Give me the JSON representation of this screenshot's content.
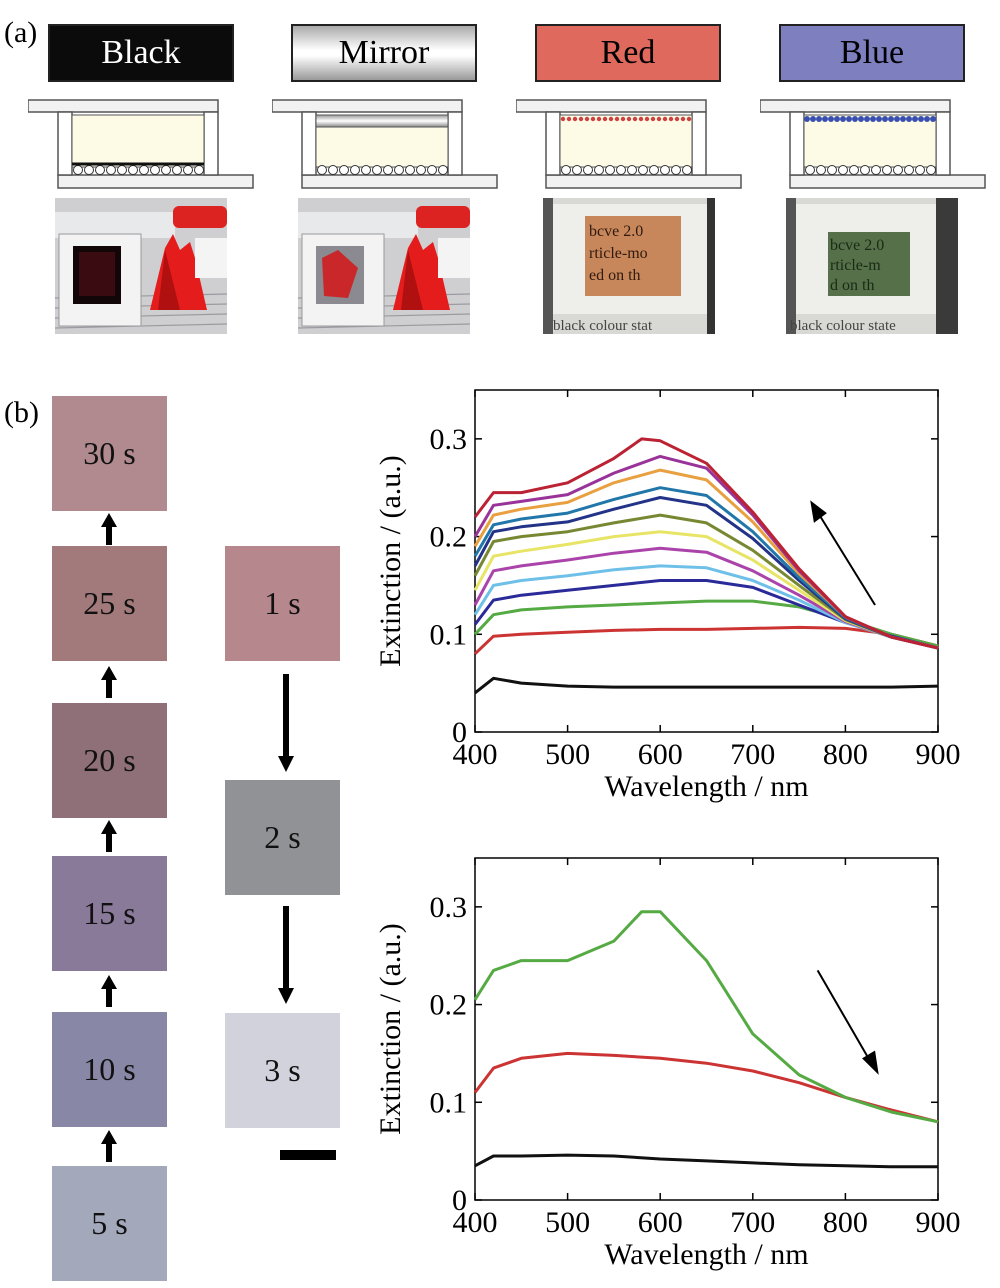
{
  "panel_a": {
    "label": "(a)",
    "states": [
      {
        "name": "Black",
        "box_color": "#0b0b0b",
        "text_color": "#ffffff",
        "layer": "black"
      },
      {
        "name": "Mirror",
        "box_color": "#dcdcdc",
        "text_color": "#000000",
        "layer": "mirror"
      },
      {
        "name": "Red",
        "box_color": "#e0695e",
        "text_color": "#000000",
        "layer": "red"
      },
      {
        "name": "Blue",
        "box_color": "#7d7fbe",
        "text_color": "#000000",
        "layer": "blue"
      }
    ],
    "photo_text_red": [
      "bcve 2.0",
      "rticle-mo",
      "ed on th",
      "black  colour  stat"
    ],
    "photo_text_blue": [
      "bcve 2.0",
      "rticle-m",
      "d on th",
      "black  colour  state"
    ]
  },
  "panel_b": {
    "label": "(b)",
    "left_column": [
      {
        "time": "30 s",
        "color": "#b08a8e"
      },
      {
        "time": "25 s",
        "color": "#a37a7c"
      },
      {
        "time": "20 s",
        "color": "#8f6f78"
      },
      {
        "time": "15 s",
        "color": "#8a7a99"
      },
      {
        "time": "10 s",
        "color": "#8887a6"
      },
      {
        "time": "5 s",
        "color": "#a4a8bb"
      }
    ],
    "right_column": [
      {
        "time": "1 s",
        "color": "#b6878d"
      },
      {
        "time": "2 s",
        "color": "#909295"
      },
      {
        "time": "3 s",
        "color": "#d1d2db"
      }
    ]
  },
  "chart_data": [
    {
      "type": "line",
      "xlabel": "Wavelength / nm",
      "ylabel": "Extinction / (a.u.)",
      "xlim": [
        400,
        900
      ],
      "ylim": [
        0,
        0.35
      ],
      "xticks": [
        400,
        500,
        600,
        700,
        800,
        900
      ],
      "yticks": [
        0,
        0.1,
        0.2,
        0.3
      ],
      "ytick_labels": [
        "0",
        "0.1",
        "0.2",
        "0.3"
      ],
      "arrow": "up-left",
      "series": [
        {
          "color": "#111111",
          "x": [
            400,
            420,
            450,
            500,
            550,
            600,
            650,
            700,
            750,
            800,
            850,
            900
          ],
          "y": [
            0.04,
            0.055,
            0.05,
            0.047,
            0.046,
            0.046,
            0.046,
            0.046,
            0.046,
            0.046,
            0.046,
            0.047
          ]
        },
        {
          "color": "#cc3333",
          "x": [
            400,
            420,
            450,
            500,
            550,
            600,
            650,
            700,
            750,
            800,
            850,
            900
          ],
          "y": [
            0.08,
            0.098,
            0.1,
            0.102,
            0.104,
            0.105,
            0.105,
            0.106,
            0.107,
            0.106,
            0.1,
            0.088
          ]
        },
        {
          "color": "#55aa44",
          "x": [
            400,
            420,
            450,
            500,
            550,
            600,
            650,
            700,
            750,
            800,
            850,
            900
          ],
          "y": [
            0.1,
            0.12,
            0.125,
            0.128,
            0.13,
            0.132,
            0.134,
            0.134,
            0.128,
            0.115,
            0.1,
            0.088
          ]
        },
        {
          "color": "#2a2a99",
          "x": [
            400,
            420,
            450,
            500,
            550,
            600,
            650,
            700,
            750,
            800,
            850,
            900
          ],
          "y": [
            0.11,
            0.135,
            0.14,
            0.145,
            0.15,
            0.155,
            0.155,
            0.148,
            0.13,
            0.112,
            0.098,
            0.086
          ]
        },
        {
          "color": "#6ec0e8",
          "x": [
            400,
            420,
            450,
            500,
            550,
            600,
            650,
            700,
            750,
            800,
            850,
            900
          ],
          "y": [
            0.12,
            0.15,
            0.155,
            0.16,
            0.166,
            0.17,
            0.168,
            0.155,
            0.135,
            0.112,
            0.097,
            0.086
          ]
        },
        {
          "color": "#aa44aa",
          "x": [
            400,
            420,
            450,
            500,
            550,
            600,
            650,
            700,
            750,
            800,
            850,
            900
          ],
          "y": [
            0.13,
            0.165,
            0.17,
            0.176,
            0.183,
            0.188,
            0.184,
            0.165,
            0.14,
            0.113,
            0.097,
            0.086
          ]
        },
        {
          "color": "#e8e466",
          "x": [
            400,
            420,
            450,
            500,
            550,
            600,
            650,
            700,
            750,
            800,
            850,
            900
          ],
          "y": [
            0.145,
            0.18,
            0.185,
            0.192,
            0.2,
            0.205,
            0.2,
            0.176,
            0.145,
            0.114,
            0.097,
            0.086
          ]
        },
        {
          "color": "#778833",
          "x": [
            400,
            420,
            450,
            500,
            550,
            600,
            650,
            700,
            750,
            800,
            850,
            900
          ],
          "y": [
            0.16,
            0.195,
            0.2,
            0.205,
            0.214,
            0.222,
            0.214,
            0.186,
            0.15,
            0.115,
            0.097,
            0.086
          ]
        },
        {
          "color": "#223388",
          "x": [
            400,
            420,
            450,
            500,
            550,
            600,
            650,
            700,
            750,
            800,
            850,
            900
          ],
          "y": [
            0.17,
            0.205,
            0.21,
            0.215,
            0.228,
            0.24,
            0.232,
            0.198,
            0.155,
            0.116,
            0.097,
            0.086
          ]
        },
        {
          "color": "#2277aa",
          "x": [
            400,
            420,
            450,
            500,
            550,
            600,
            650,
            700,
            750,
            800,
            850,
            900
          ],
          "y": [
            0.18,
            0.212,
            0.218,
            0.224,
            0.238,
            0.25,
            0.242,
            0.205,
            0.158,
            0.117,
            0.097,
            0.086
          ]
        },
        {
          "color": "#e8a040",
          "x": [
            400,
            420,
            450,
            500,
            550,
            600,
            650,
            700,
            750,
            800,
            850,
            900
          ],
          "y": [
            0.19,
            0.222,
            0.228,
            0.235,
            0.255,
            0.268,
            0.258,
            0.215,
            0.162,
            0.118,
            0.097,
            0.086
          ]
        },
        {
          "color": "#993399",
          "x": [
            400,
            420,
            450,
            500,
            550,
            600,
            650,
            700,
            750,
            800,
            850,
            900
          ],
          "y": [
            0.2,
            0.232,
            0.236,
            0.243,
            0.265,
            0.282,
            0.27,
            0.222,
            0.165,
            0.118,
            0.097,
            0.086
          ]
        },
        {
          "color": "#bb2233",
          "x": [
            400,
            420,
            450,
            500,
            550,
            580,
            600,
            650,
            700,
            750,
            800,
            850,
            900
          ],
          "y": [
            0.22,
            0.245,
            0.245,
            0.255,
            0.28,
            0.3,
            0.298,
            0.275,
            0.225,
            0.167,
            0.118,
            0.097,
            0.086
          ]
        }
      ]
    },
    {
      "type": "line",
      "xlabel": "Wavelength / nm",
      "ylabel": "Extinction / (a.u.)",
      "xlim": [
        400,
        900
      ],
      "ylim": [
        0,
        0.35
      ],
      "xticks": [
        400,
        500,
        600,
        700,
        800,
        900
      ],
      "yticks": [
        0,
        0.1,
        0.2,
        0.3
      ],
      "ytick_labels": [
        "0",
        "0.1",
        "0.2",
        "0.3"
      ],
      "arrow": "down-right",
      "series": [
        {
          "color": "#111111",
          "x": [
            400,
            420,
            450,
            500,
            550,
            600,
            650,
            700,
            750,
            800,
            850,
            900
          ],
          "y": [
            0.035,
            0.045,
            0.045,
            0.046,
            0.045,
            0.042,
            0.04,
            0.038,
            0.036,
            0.035,
            0.034,
            0.034
          ]
        },
        {
          "color": "#cc3333",
          "x": [
            400,
            420,
            450,
            500,
            550,
            600,
            650,
            700,
            750,
            800,
            850,
            900
          ],
          "y": [
            0.11,
            0.135,
            0.145,
            0.15,
            0.148,
            0.145,
            0.14,
            0.132,
            0.12,
            0.105,
            0.092,
            0.08
          ]
        },
        {
          "color": "#55aa44",
          "x": [
            400,
            420,
            450,
            500,
            550,
            580,
            600,
            650,
            700,
            750,
            800,
            850,
            900
          ],
          "y": [
            0.205,
            0.235,
            0.245,
            0.245,
            0.265,
            0.295,
            0.295,
            0.245,
            0.17,
            0.128,
            0.105,
            0.09,
            0.08
          ]
        }
      ]
    }
  ],
  "scale_bar": true
}
